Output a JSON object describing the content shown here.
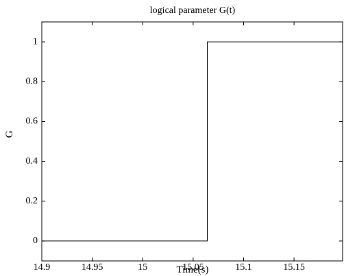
{
  "chart_data": {
    "type": "line",
    "title": "logical parameter G(t)",
    "xlabel": "Time(s)",
    "ylabel": "G",
    "xlim": [
      14.9,
      15.19815
    ],
    "ylim": [
      -0.1,
      1.1
    ],
    "x_ticks": [
      14.9,
      14.95,
      15,
      15.05,
      15.1,
      15.15
    ],
    "x_tick_labels": [
      "14.9",
      "14.95",
      "15",
      "15.05",
      "15.1",
      "15.15"
    ],
    "y_ticks": [
      0,
      0.2,
      0.4,
      0.6,
      0.8,
      1
    ],
    "y_tick_labels": [
      "0",
      "0.2",
      "0.4",
      "0.6",
      "0.8",
      "1"
    ],
    "grid": false,
    "series": [
      {
        "x": [
          14.9,
          15.064,
          15.064,
          15.19815
        ],
        "y": [
          0,
          0,
          1,
          1
        ],
        "color": "#000000"
      }
    ]
  }
}
